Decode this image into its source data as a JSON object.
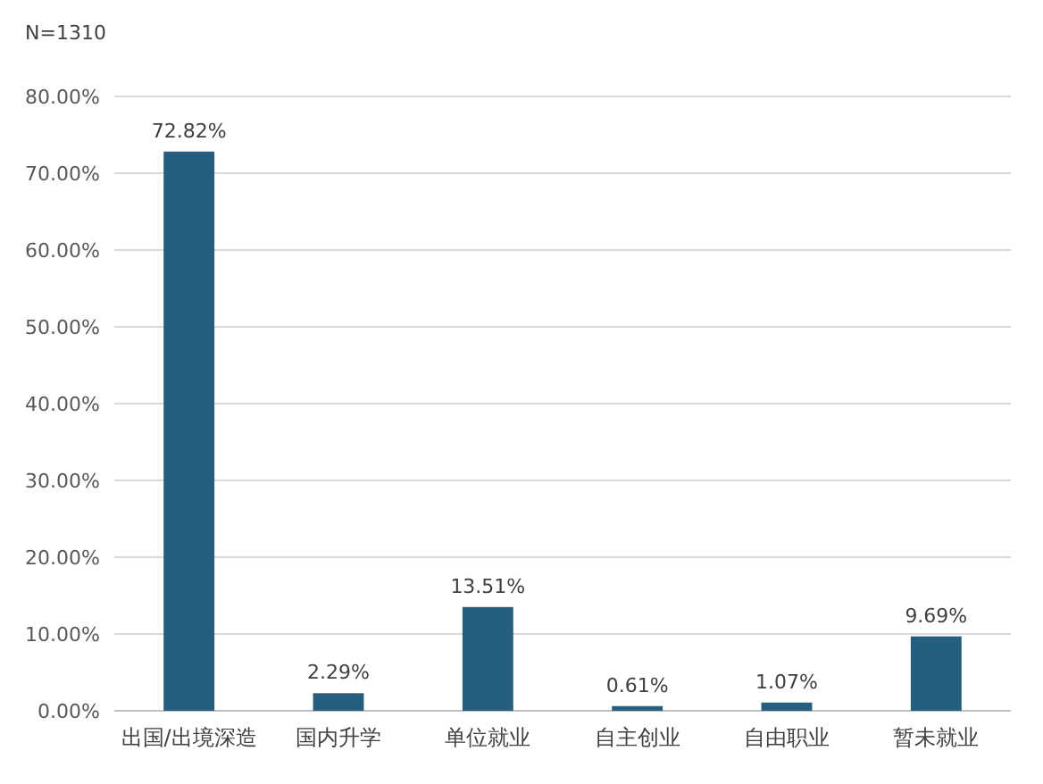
{
  "chart_data": {
    "type": "bar",
    "annotations": [
      "N=1310"
    ],
    "categories": [
      "出国/出境深造",
      "国内升学",
      "单位就业",
      "自主创业",
      "自由职业",
      "暂未就业"
    ],
    "values": [
      72.82,
      2.29,
      13.51,
      0.61,
      1.07,
      9.69
    ],
    "value_labels": [
      "72.82%",
      "2.29%",
      "13.51%",
      "0.61%",
      "1.07%",
      "9.69%"
    ],
    "color": "#255e7e",
    "ylim": [
      0,
      80
    ],
    "yticks": [
      {
        "value": 0,
        "label": "0.00%"
      },
      {
        "value": 10,
        "label": "10.00%"
      },
      {
        "value": 20,
        "label": "20.00%"
      },
      {
        "value": 30,
        "label": "30.00%"
      },
      {
        "value": 40,
        "label": "40.00%"
      },
      {
        "value": 50,
        "label": "50.00%"
      },
      {
        "value": 60,
        "label": "60.00%"
      },
      {
        "value": 70,
        "label": "70.00%"
      },
      {
        "value": 80,
        "label": "80.00%"
      }
    ],
    "grid": "y"
  }
}
